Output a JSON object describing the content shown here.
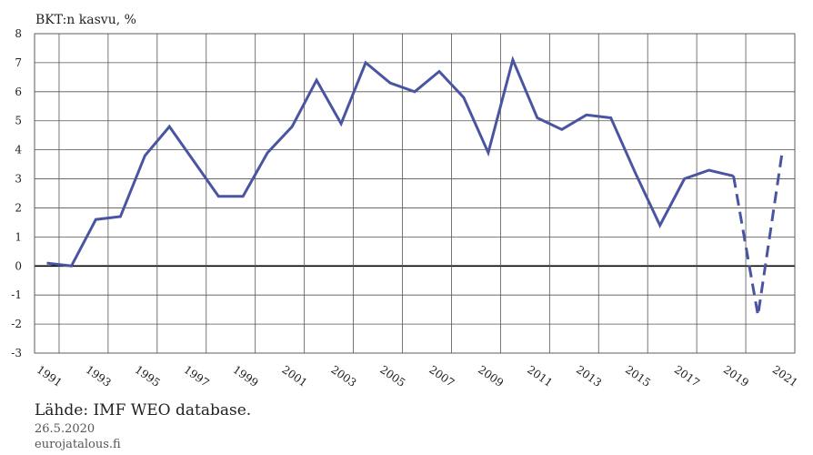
{
  "chart_data": {
    "type": "line",
    "title": "BKT:n kasvu, %",
    "xlabel": "",
    "ylabel": "",
    "xlim": [
      1991,
      2021
    ],
    "ylim": [
      -3,
      8
    ],
    "yticks": [
      -3,
      -2,
      -1,
      0,
      1,
      2,
      3,
      4,
      5,
      6,
      7,
      8
    ],
    "xticks": [
      1991,
      1993,
      1995,
      1997,
      1999,
      2001,
      2003,
      2005,
      2007,
      2009,
      2011,
      2013,
      2015,
      2017,
      2019,
      2021
    ],
    "grid": true,
    "line_color": "#4a55a2",
    "series": [
      {
        "style": "solid",
        "x": [
          1991,
          1992,
          1993,
          1994,
          1995,
          1996,
          1997,
          1998,
          1999,
          2000,
          2001,
          2002,
          2003,
          2004,
          2005,
          2006,
          2007,
          2008,
          2009,
          2010,
          2011,
          2012,
          2013,
          2014,
          2015,
          2016,
          2017,
          2018,
          2019
        ],
        "values": [
          0.1,
          0.0,
          1.6,
          1.7,
          3.8,
          4.8,
          3.6,
          2.4,
          2.4,
          3.9,
          4.8,
          6.4,
          4.9,
          7.0,
          6.3,
          6.0,
          6.7,
          5.8,
          3.9,
          7.1,
          5.1,
          4.7,
          5.2,
          5.1,
          3.2,
          1.4,
          3.0,
          3.3,
          3.1
        ]
      },
      {
        "style": "dashed",
        "x": [
          2019,
          2020,
          2021
        ],
        "values": [
          3.1,
          -1.7,
          4.0
        ]
      }
    ]
  },
  "footer": {
    "source": "Lähde: IMF WEO database.",
    "date": "26.5.2020",
    "site": "eurojatalous.fi"
  }
}
